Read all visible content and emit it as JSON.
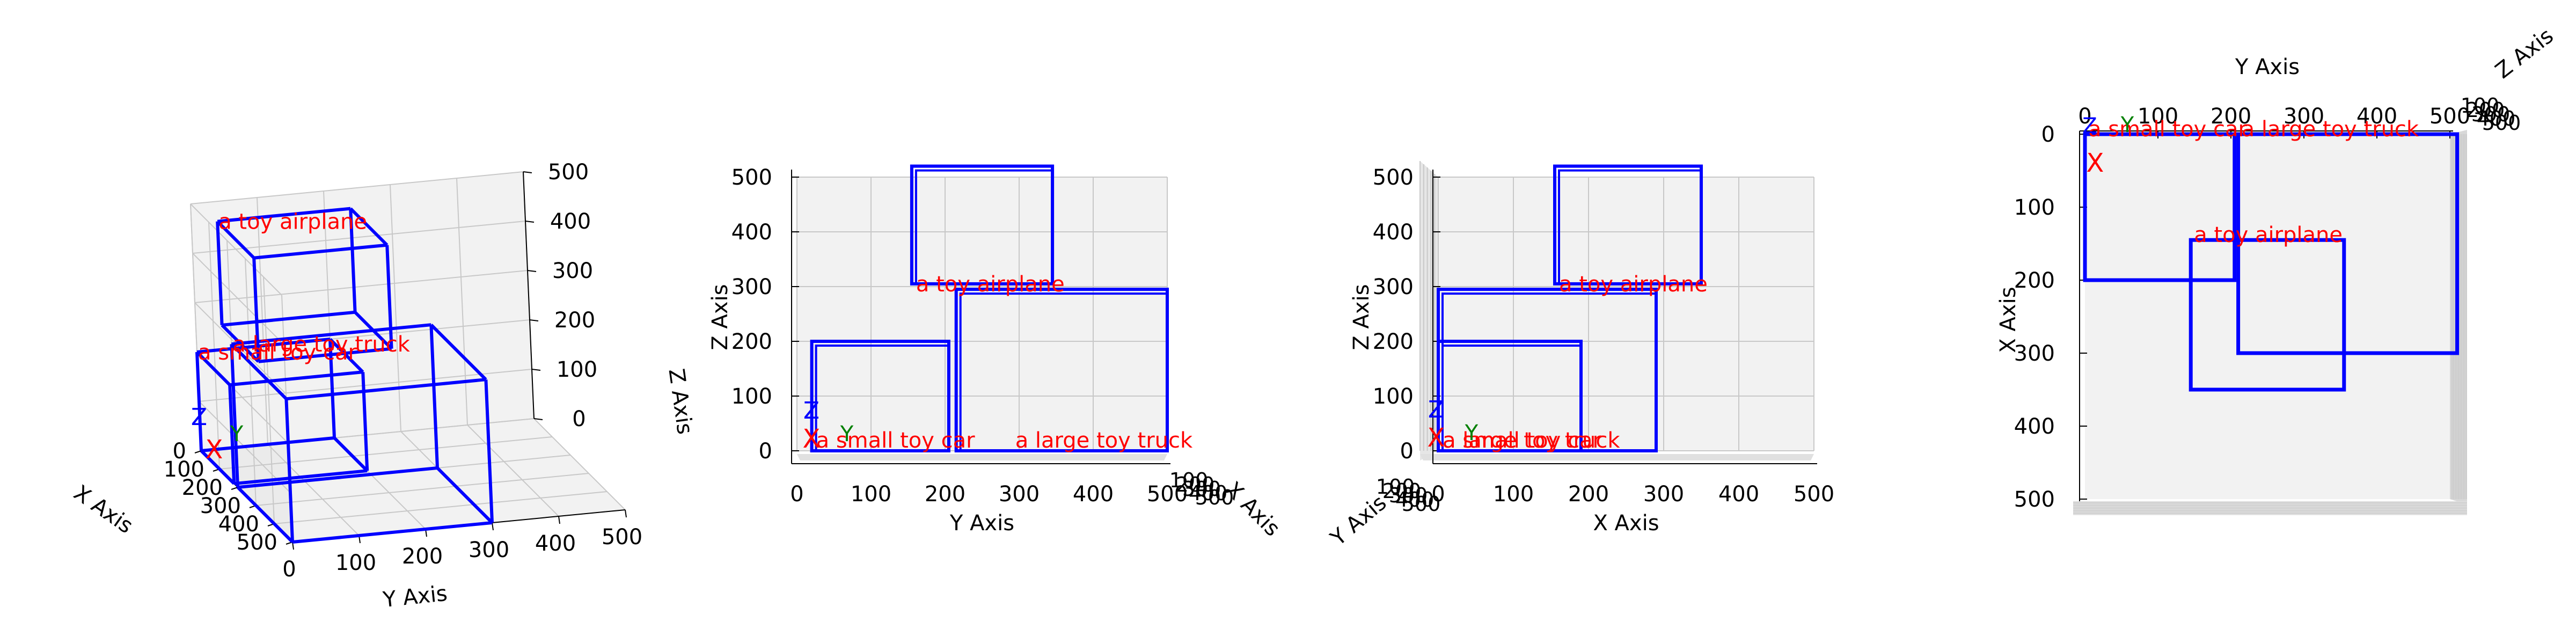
{
  "chart_data": [
    {
      "type": "3d-bounding-boxes",
      "view": "perspective",
      "xlabel": "X Axis",
      "ylabel": "Y Axis",
      "zlabel": "Z Axis",
      "xlim": [
        0,
        500
      ],
      "ylim": [
        0,
        500
      ],
      "zlim": [
        0,
        500
      ],
      "xticks": [
        "0",
        "100",
        "200",
        "300",
        "400",
        "500"
      ],
      "yticks": [
        "0",
        "100",
        "200",
        "300",
        "400",
        "500"
      ],
      "zticks": [
        "0",
        "100",
        "200",
        "300",
        "400",
        "500"
      ],
      "grid": true,
      "boxes": [
        {
          "label": "a toy airplane",
          "x": [
            150,
            350
          ],
          "y": [
            0,
            200
          ],
          "z": [
            310,
            520
          ]
        },
        {
          "label": "a large toy truck",
          "x": [
            200,
            500
          ],
          "y": [
            0,
            300
          ],
          "z": [
            0,
            290
          ]
        },
        {
          "label": "a small toy car",
          "x": [
            0,
            180
          ],
          "y": [
            0,
            200
          ],
          "z": [
            0,
            200
          ]
        }
      ],
      "axis_marker": {
        "labels": [
          "X",
          "Y",
          "Z"
        ]
      }
    },
    {
      "type": "3d-bounding-boxes",
      "view": "front (Y-Z)",
      "xlabel": "Y Axis",
      "ylabel": "Z Axis",
      "zlabel": "X Axis",
      "xlim": [
        0,
        500
      ],
      "ylim": [
        0,
        500
      ],
      "xticks": [
        "0",
        "100",
        "200",
        "300",
        "400",
        "500"
      ],
      "yticks": [
        "0",
        "100",
        "200",
        "300",
        "400",
        "500"
      ],
      "depth_ticks": [
        "100",
        "200",
        "300",
        "400",
        "500"
      ],
      "grid": true,
      "boxes": [
        {
          "label": "a toy airplane",
          "x": [
            155,
            345
          ],
          "y": [
            305,
            520
          ]
        },
        {
          "label": "a large toy truck",
          "x": [
            215,
            500
          ],
          "y": [
            0,
            295
          ]
        },
        {
          "label": "a small toy car",
          "x": [
            20,
            205
          ],
          "y": [
            0,
            200
          ]
        }
      ],
      "axis_marker": {
        "labels": [
          "X",
          "Y",
          "Z"
        ]
      }
    },
    {
      "type": "3d-bounding-boxes",
      "view": "side (X-Z)",
      "xlabel": "X Axis",
      "ylabel": "Z Axis",
      "zlabel": "Y Axis",
      "xlim": [
        0,
        500
      ],
      "ylim": [
        0,
        500
      ],
      "xticks": [
        "0",
        "100",
        "200",
        "300",
        "400",
        "500"
      ],
      "yticks": [
        "0",
        "100",
        "200",
        "300",
        "400",
        "500"
      ],
      "depth_ticks": [
        "100",
        "200",
        "300",
        "400",
        "500"
      ],
      "grid": true,
      "boxes": [
        {
          "label": "a toy airplane",
          "x": [
            155,
            350
          ],
          "y": [
            305,
            520
          ]
        },
        {
          "label": "a large toy truck",
          "x": [
            0,
            290
          ],
          "y": [
            0,
            295
          ]
        },
        {
          "label": "a small toy car",
          "x": [
            0,
            190
          ],
          "y": [
            0,
            200
          ]
        }
      ],
      "axis_marker": {
        "labels": [
          "X",
          "Y",
          "Z"
        ]
      }
    },
    {
      "type": "3d-bounding-boxes",
      "view": "top (Y-X)",
      "xlabel": "Y Axis",
      "ylabel": "X Axis",
      "zlabel": "Z Axis",
      "xlim": [
        0,
        500
      ],
      "ylim": [
        0,
        500
      ],
      "xticks": [
        "0",
        "100",
        "200",
        "300",
        "400",
        "500"
      ],
      "yticks": [
        "0",
        "100",
        "200",
        "300",
        "400",
        "500"
      ],
      "depth_ticks": [
        "100",
        "200",
        "300",
        "400",
        "500"
      ],
      "grid": false,
      "boxes": [
        {
          "label": "a toy airplane",
          "x": [
            145,
            355
          ],
          "y": [
            145,
            350
          ]
        },
        {
          "label": "a large toy truck",
          "x": [
            210,
            510
          ],
          "y": [
            0,
            300
          ]
        },
        {
          "label": "a small toy car",
          "x": [
            0,
            205
          ],
          "y": [
            0,
            200
          ]
        }
      ],
      "axis_marker": {
        "labels": [
          "X",
          "Y",
          "Z"
        ]
      }
    }
  ],
  "colors": {
    "box": "#0000ff",
    "label": "#ff0000",
    "marker_x": "#ff0000",
    "marker_y": "#008000",
    "marker_z": "#0000ff",
    "pane": "#f2f2f2",
    "grid": "#c8c8c8"
  }
}
